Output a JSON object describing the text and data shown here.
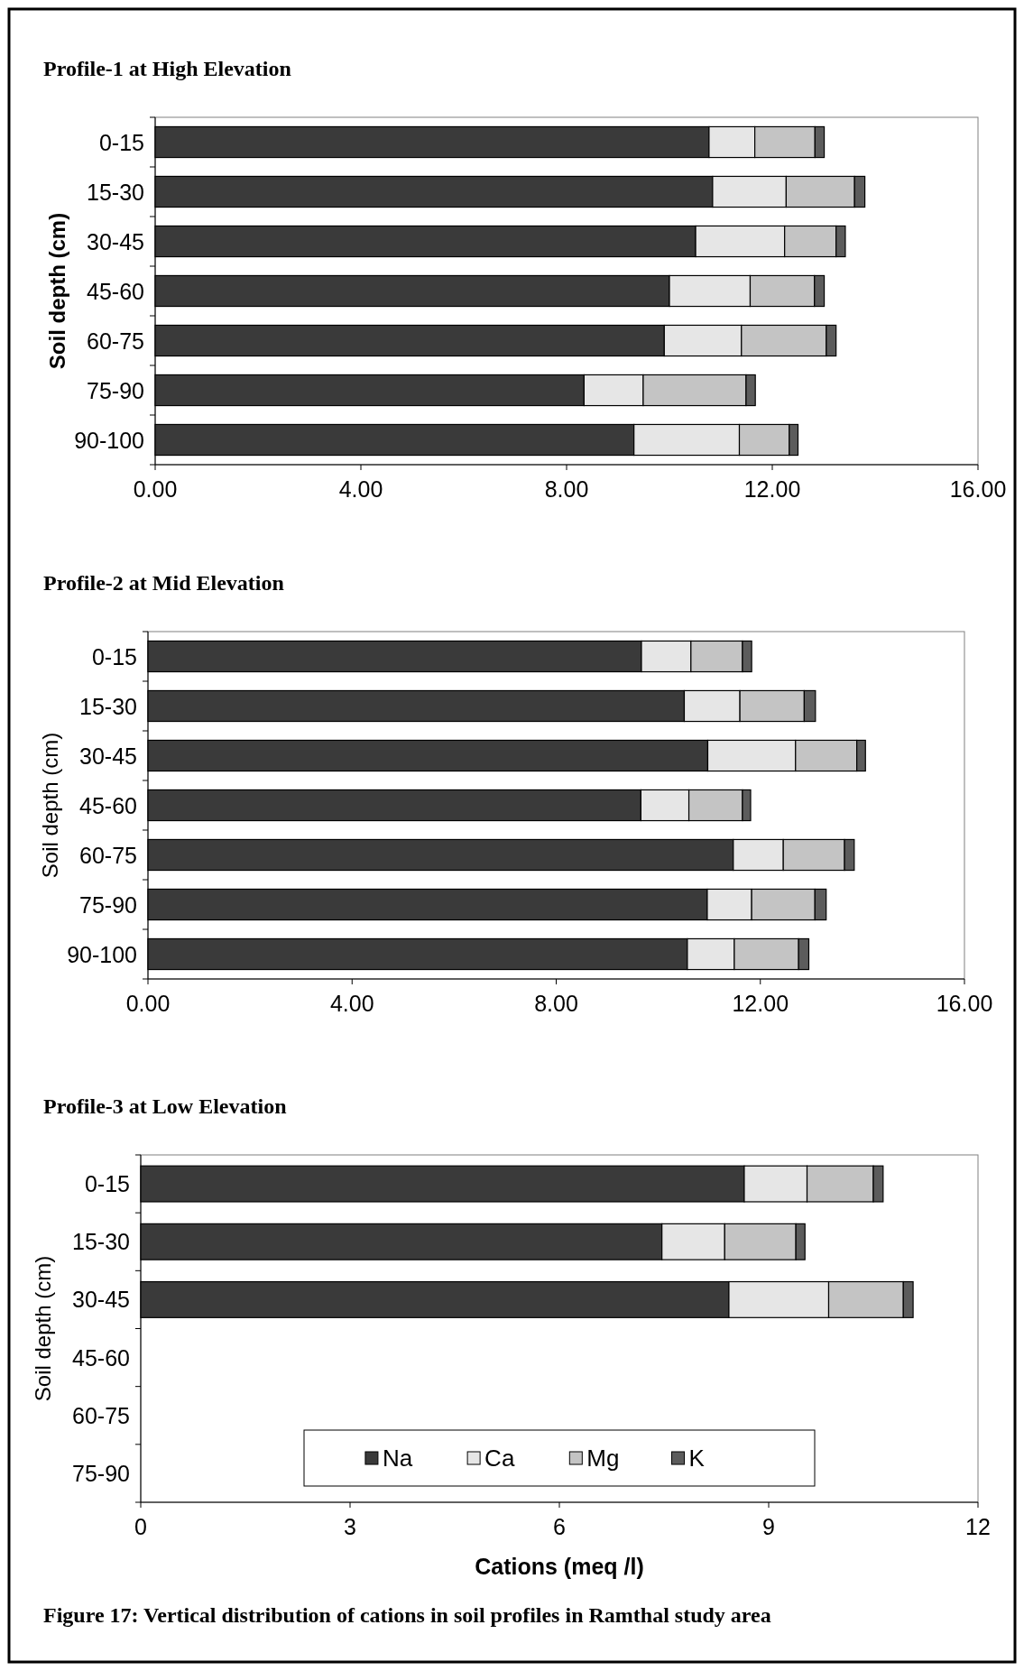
{
  "chart_data": [
    {
      "type": "bar",
      "orientation": "horizontal",
      "stacked": true,
      "title": "Profile-1 at High Elevation",
      "ylabel": "Soil depth (cm)",
      "categories": [
        "0-15",
        "15-30",
        "30-45",
        "45-60",
        "60-75",
        "75-90",
        "90-100"
      ],
      "xlim": [
        0,
        16
      ],
      "xticks": [
        {
          "value": 0,
          "label": "0.00"
        },
        {
          "value": 4,
          "label": "4.00"
        },
        {
          "value": 8,
          "label": "8.00"
        },
        {
          "value": 12,
          "label": "12.00"
        },
        {
          "value": 16,
          "label": "16.00"
        }
      ],
      "grid": false,
      "legend": false,
      "series": [
        {
          "color": "#3a3a3a",
          "values": [
            10.77,
            10.84,
            10.51,
            10.0,
            9.9,
            8.34,
            9.31
          ]
        },
        {
          "color": "#e6e6e6",
          "values": [
            0.89,
            1.43,
            1.73,
            1.57,
            1.5,
            1.15,
            2.05
          ]
        },
        {
          "color": "#c4c4c4",
          "values": [
            1.17,
            1.33,
            1.0,
            1.25,
            1.65,
            2.0,
            0.97
          ]
        },
        {
          "color": "#5c5c5c",
          "values": [
            0.18,
            0.2,
            0.18,
            0.19,
            0.19,
            0.18,
            0.17
          ]
        }
      ]
    },
    {
      "type": "bar",
      "orientation": "horizontal",
      "stacked": true,
      "title": "Profile-2 at Mid Elevation",
      "ylabel": "Soil depth (cm)",
      "categories": [
        "0-15",
        "15-30",
        "30-45",
        "45-60",
        "60-75",
        "75-90",
        "90-100"
      ],
      "xlim": [
        0,
        16
      ],
      "xticks": [
        {
          "value": 0,
          "label": "0.00"
        },
        {
          "value": 4,
          "label": "4.00"
        },
        {
          "value": 8,
          "label": "8.00"
        },
        {
          "value": 12,
          "label": "12.00"
        },
        {
          "value": 16,
          "label": "16.00"
        }
      ],
      "grid": false,
      "legend": false,
      "series": [
        {
          "color": "#3a3a3a",
          "values": [
            9.67,
            10.51,
            10.97,
            9.66,
            11.47,
            10.96,
            10.57
          ]
        },
        {
          "color": "#e6e6e6",
          "values": [
            0.97,
            1.09,
            1.72,
            0.94,
            0.98,
            0.87,
            0.92
          ]
        },
        {
          "color": "#c4c4c4",
          "values": [
            1.01,
            1.26,
            1.2,
            1.05,
            1.2,
            1.24,
            1.26
          ]
        },
        {
          "color": "#5c5c5c",
          "values": [
            0.18,
            0.22,
            0.17,
            0.16,
            0.19,
            0.22,
            0.2
          ]
        }
      ]
    },
    {
      "type": "bar",
      "orientation": "horizontal",
      "stacked": true,
      "title": "Profile-3 at Low Elevation",
      "xlabel": "Cations (meq /l)",
      "ylabel": "Soil depth (cm)",
      "categories": [
        "0-15",
        "15-30",
        "30-45",
        "45-60",
        "60-75",
        "75-90"
      ],
      "xlim": [
        0,
        12
      ],
      "xticks": [
        0,
        3,
        6,
        9,
        12
      ],
      "grid": false,
      "legend": "bottom",
      "annotations": [
        "Figure 17: Vertical distribution of cations in soil profiles in Ramthal study area"
      ],
      "series": [
        {
          "name": "Na",
          "color": "#3a3a3a",
          "values": [
            8.65,
            7.47,
            8.43,
            null,
            null,
            null
          ]
        },
        {
          "name": "Ca",
          "color": "#e6e6e6",
          "values": [
            0.9,
            0.9,
            1.43,
            null,
            null,
            null
          ]
        },
        {
          "name": "Mg",
          "color": "#c4c4c4",
          "values": [
            0.95,
            1.02,
            1.07,
            null,
            null,
            null
          ]
        },
        {
          "name": "K",
          "color": "#5c5c5c",
          "values": [
            0.14,
            0.13,
            0.14,
            null,
            null,
            null
          ]
        }
      ]
    }
  ]
}
